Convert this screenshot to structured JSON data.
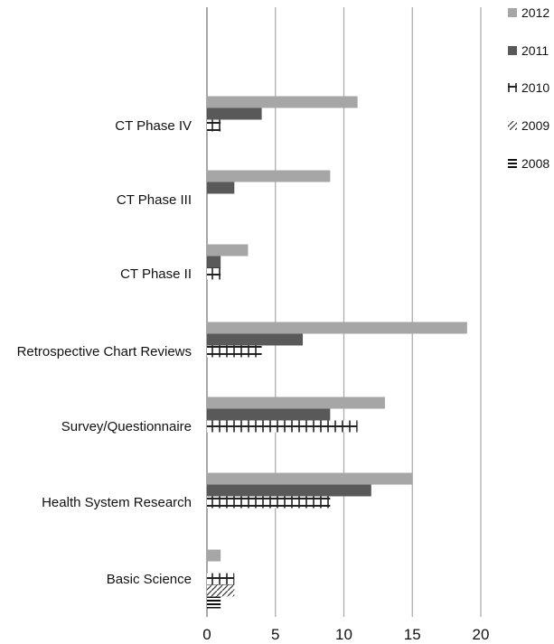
{
  "chart_data": {
    "type": "bar",
    "orientation": "horizontal",
    "title": "",
    "xlabel": "",
    "ylabel": "",
    "categories": [
      "Basic Science",
      "Health System Research",
      "Survey/Questionnaire",
      "Retrospective Chart Reviews",
      "CT Phase II",
      "CT Phase III",
      "CT Phase IV"
    ],
    "series": [
      {
        "name": "2008",
        "values": [
          1,
          0,
          0,
          0,
          0,
          0,
          0
        ]
      },
      {
        "name": "2009",
        "values": [
          2,
          0,
          0,
          0,
          0,
          0,
          0
        ]
      },
      {
        "name": "2010",
        "values": [
          2,
          9,
          11,
          4,
          1,
          0,
          1
        ]
      },
      {
        "name": "2011",
        "values": [
          0,
          12,
          9,
          7,
          1,
          2,
          4
        ]
      },
      {
        "name": "2012",
        "values": [
          1,
          15,
          13,
          19,
          3,
          9,
          11
        ]
      }
    ],
    "xlim": [
      0,
      20
    ],
    "xticks": [
      "0",
      "5",
      "10",
      "15",
      "20"
    ],
    "grid": "vertical",
    "legend": "top-right",
    "colors": {
      "2012": "#a6a6a6",
      "2011": "#595959",
      "2010": "pattern-vertical-brick",
      "2009": "pattern-diagonal-dash",
      "2008": "pattern-horizontal-stripes"
    }
  }
}
